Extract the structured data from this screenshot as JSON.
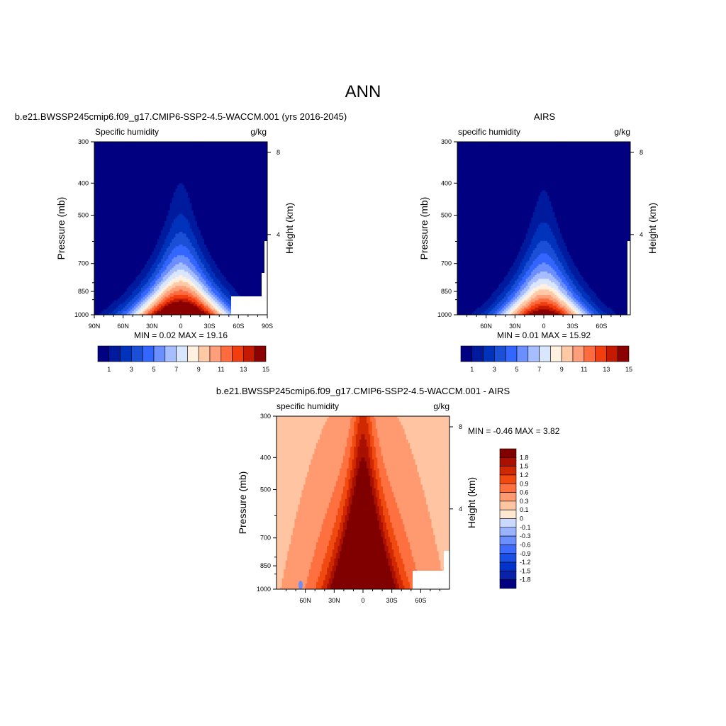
{
  "page_title": "ANN",
  "colors": {
    "abs_scale": [
      "#000080",
      "#001a9e",
      "#0033bb",
      "#1a4fd6",
      "#3366ff",
      "#6b8fff",
      "#a6bdff",
      "#d9e6ff",
      "#fff0e0",
      "#ffc9a6",
      "#ff9e7a",
      "#ff6b3d",
      "#f23d0f",
      "#c41a00",
      "#8b0000"
    ],
    "diff_scale": [
      "#000080",
      "#0a22a8",
      "#0033cc",
      "#1a4fe6",
      "#3d6bff",
      "#6b8fff",
      "#99b3ff",
      "#c9d9ff",
      "#ffe8d1",
      "#ffc4a1",
      "#ff9a70",
      "#ff7040",
      "#f04a10",
      "#d02800",
      "#aa1000",
      "#800000"
    ],
    "missing": "#ffffff"
  },
  "chart_data": [
    {
      "id": "model",
      "type": "heatmap",
      "title": "b.e21.BWSSP245cmip6.f09_g17.CMIP6-SSP2-4.5-WACCM.001 (yrs 2016-2045)",
      "left_string": "Specific humidity",
      "right_string": "g/kg",
      "ylabel": "Pressure (mb)",
      "y2label": "Height (km)",
      "x_ticks": [
        "90N",
        "60N",
        "30N",
        "0",
        "30S",
        "60S",
        "90S"
      ],
      "y_ticks": [
        "300",
        "400",
        "500",
        "700",
        "850",
        "1000"
      ],
      "y2_ticks": [
        "8",
        "4"
      ],
      "min_max": "MIN =   0.02  MAX =   19.16",
      "colorbar_labels": [
        "1",
        "3",
        "5",
        "7",
        "9",
        "11",
        "13",
        "15"
      ],
      "peak": 19.16,
      "width_scale": 1.0
    },
    {
      "id": "obs",
      "type": "heatmap",
      "title": "AIRS",
      "left_string": "specific humidity",
      "right_string": "g/kg",
      "ylabel": "Pressure (mb)",
      "y2label": "Height (km)",
      "x_ticks": [
        "60N",
        "30N",
        "0",
        "30S",
        "60S"
      ],
      "y_ticks": [
        "300",
        "400",
        "500",
        "700",
        "850",
        "1000"
      ],
      "y2_ticks": [
        "8",
        "4"
      ],
      "min_max": "MIN =   0.01  MAX =   15.92",
      "colorbar_labels": [
        "1",
        "3",
        "5",
        "7",
        "9",
        "11",
        "13",
        "15"
      ],
      "peak": 15.92,
      "width_scale": 0.9
    },
    {
      "id": "diff",
      "type": "heatmap",
      "title": "b.e21.BWSSP245cmip6.f09_g17.CMIP6-SSP2-4.5-WACCM.001 - AIRS",
      "left_string": "specific humidity",
      "right_string": "g/kg",
      "ylabel": "Pressure (mb)",
      "y2label": "Height (km)",
      "x_ticks": [
        "60N",
        "30N",
        "0",
        "30S",
        "60S"
      ],
      "y_ticks": [
        "300",
        "400",
        "500",
        "700",
        "850",
        "1000"
      ],
      "y2_ticks": [
        "8",
        "4"
      ],
      "min_max": "MIN =  -0.46  MAX =   3.82",
      "colorbar_labels": [
        "1.8",
        "1.5",
        "1.2",
        "0.9",
        "0.6",
        "0.3",
        "0.1",
        "0",
        "-0.1",
        "-0.3",
        "-0.6",
        "-0.9",
        "-1.2",
        "-1.5",
        "-1.8"
      ]
    }
  ]
}
